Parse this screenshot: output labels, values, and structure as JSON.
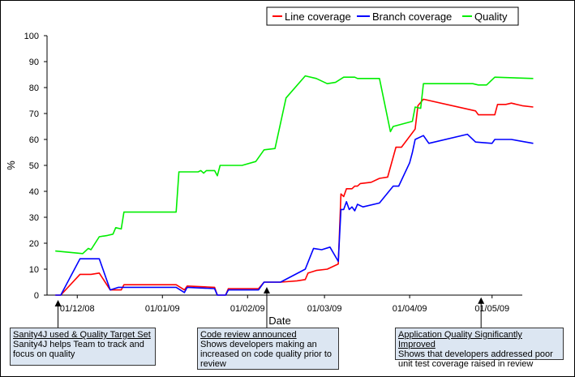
{
  "chart_data": {
    "type": "line",
    "ylabel": "%",
    "xlabel": "Date",
    "ylim": [
      0,
      100
    ],
    "yticks": [
      0,
      10,
      20,
      30,
      40,
      50,
      60,
      70,
      80,
      90,
      100
    ],
    "xrange": [
      "2008-11-20",
      "2009-05-12"
    ],
    "xticks": [
      {
        "date": "2008-12-01",
        "label": "01/12/08"
      },
      {
        "date": "2009-01-01",
        "label": "01/01/09"
      },
      {
        "date": "2009-02-01",
        "label": "01/02/09"
      },
      {
        "date": "2009-03-01",
        "label": "01/03/09"
      },
      {
        "date": "2009-04-01",
        "label": "01/04/09"
      },
      {
        "date": "2009-05-01",
        "label": "01/05/09"
      }
    ],
    "grid": false,
    "legend_position": "top-right",
    "series": [
      {
        "name": "Line coverage",
        "color": "#ff0000",
        "points": [
          [
            "2008-11-23",
            0
          ],
          [
            "2008-11-25",
            0
          ],
          [
            "2008-12-02",
            8
          ],
          [
            "2008-12-06",
            8
          ],
          [
            "2008-12-09",
            8.5
          ],
          [
            "2008-12-13",
            2
          ],
          [
            "2008-12-17",
            2
          ],
          [
            "2008-12-18",
            4
          ],
          [
            "2009-01-06",
            4
          ],
          [
            "2009-01-09",
            2
          ],
          [
            "2009-01-10",
            3.5
          ],
          [
            "2009-01-20",
            3
          ],
          [
            "2009-01-21",
            0
          ],
          [
            "2009-01-24",
            0
          ],
          [
            "2009-01-25",
            2.5
          ],
          [
            "2009-02-05",
            2.5
          ],
          [
            "2009-02-07",
            5
          ],
          [
            "2009-02-13",
            5
          ],
          [
            "2009-02-19",
            5.5
          ],
          [
            "2009-02-22",
            6
          ],
          [
            "2009-02-23",
            8.5
          ],
          [
            "2009-02-26",
            9.5
          ],
          [
            "2009-03-02",
            10
          ],
          [
            "2009-03-06",
            12
          ],
          [
            "2009-03-07",
            39
          ],
          [
            "2009-03-08",
            38
          ],
          [
            "2009-03-09",
            41
          ],
          [
            "2009-03-11",
            41
          ],
          [
            "2009-03-12",
            42
          ],
          [
            "2009-03-13",
            42
          ],
          [
            "2009-03-14",
            43
          ],
          [
            "2009-03-18",
            43.5
          ],
          [
            "2009-03-21",
            45
          ],
          [
            "2009-03-24",
            45.5
          ],
          [
            "2009-03-27",
            57
          ],
          [
            "2009-03-29",
            57
          ],
          [
            "2009-04-03",
            64
          ],
          [
            "2009-04-04",
            73
          ],
          [
            "2009-04-06",
            75.5
          ],
          [
            "2009-04-25",
            71
          ],
          [
            "2009-04-26",
            69.5
          ],
          [
            "2009-05-02",
            69.5
          ],
          [
            "2009-05-03",
            73.5
          ],
          [
            "2009-05-06",
            73.5
          ],
          [
            "2009-05-08",
            74
          ],
          [
            "2009-05-12",
            73
          ],
          [
            "2009-05-16",
            72.5
          ]
        ]
      },
      {
        "name": "Branch coverage",
        "color": "#0000ff",
        "points": [
          [
            "2008-11-23",
            0
          ],
          [
            "2008-11-25",
            0
          ],
          [
            "2008-12-02",
            14
          ],
          [
            "2008-12-09",
            14
          ],
          [
            "2008-12-13",
            2
          ],
          [
            "2008-12-16",
            3
          ],
          [
            "2008-12-18",
            3
          ],
          [
            "2009-01-06",
            3
          ],
          [
            "2009-01-09",
            1
          ],
          [
            "2009-01-10",
            3
          ],
          [
            "2009-01-20",
            2.5
          ],
          [
            "2009-01-21",
            0
          ],
          [
            "2009-01-24",
            0
          ],
          [
            "2009-01-25",
            2
          ],
          [
            "2009-02-05",
            2
          ],
          [
            "2009-02-07",
            5
          ],
          [
            "2009-02-13",
            5
          ],
          [
            "2009-02-22",
            10
          ],
          [
            "2009-02-25",
            18
          ],
          [
            "2009-02-28",
            17.5
          ],
          [
            "2009-03-03",
            18.5
          ],
          [
            "2009-03-06",
            13
          ],
          [
            "2009-03-07",
            33
          ],
          [
            "2009-03-08",
            33
          ],
          [
            "2009-03-09",
            36
          ],
          [
            "2009-03-10",
            33
          ],
          [
            "2009-03-11",
            34
          ],
          [
            "2009-03-12",
            32.5
          ],
          [
            "2009-03-13",
            35
          ],
          [
            "2009-03-15",
            34
          ],
          [
            "2009-03-21",
            35.5
          ],
          [
            "2009-03-26",
            42
          ],
          [
            "2009-03-28",
            42
          ],
          [
            "2009-04-01",
            51
          ],
          [
            "2009-04-02",
            55
          ],
          [
            "2009-04-03",
            60
          ],
          [
            "2009-04-06",
            61.5
          ],
          [
            "2009-04-08",
            58.5
          ],
          [
            "2009-04-22",
            62
          ],
          [
            "2009-04-25",
            59
          ],
          [
            "2009-05-01",
            58.5
          ],
          [
            "2009-05-02",
            60
          ],
          [
            "2009-05-08",
            60
          ],
          [
            "2009-05-16",
            58.5
          ]
        ]
      },
      {
        "name": "Quality",
        "color": "#00ee00",
        "points": [
          [
            "2008-11-23",
            17
          ],
          [
            "2008-12-03",
            16
          ],
          [
            "2008-12-05",
            18
          ],
          [
            "2008-12-06",
            17.5
          ],
          [
            "2008-12-09",
            22.5
          ],
          [
            "2008-12-12",
            23
          ],
          [
            "2008-12-14",
            23.5
          ],
          [
            "2008-12-15",
            26
          ],
          [
            "2008-12-17",
            25.5
          ],
          [
            "2008-12-18",
            32
          ],
          [
            "2009-01-06",
            32
          ],
          [
            "2009-01-07",
            47.5
          ],
          [
            "2009-01-14",
            47.5
          ],
          [
            "2009-01-15",
            48
          ],
          [
            "2009-01-16",
            47
          ],
          [
            "2009-01-17",
            48
          ],
          [
            "2009-01-20",
            48
          ],
          [
            "2009-01-21",
            46
          ],
          [
            "2009-01-22",
            50
          ],
          [
            "2009-01-29",
            50
          ],
          [
            "2009-01-30",
            50
          ],
          [
            "2009-02-04",
            51.5
          ],
          [
            "2009-02-07",
            56
          ],
          [
            "2009-02-11",
            56.5
          ],
          [
            "2009-02-15",
            76
          ],
          [
            "2009-02-22",
            84.5
          ],
          [
            "2009-02-26",
            83.5
          ],
          [
            "2009-03-02",
            81.5
          ],
          [
            "2009-03-05",
            82
          ],
          [
            "2009-03-08",
            84
          ],
          [
            "2009-03-12",
            84
          ],
          [
            "2009-03-13",
            83.5
          ],
          [
            "2009-03-21",
            83.5
          ],
          [
            "2009-03-25",
            63
          ],
          [
            "2009-03-26",
            65
          ],
          [
            "2009-04-02",
            67
          ],
          [
            "2009-04-03",
            72.5
          ],
          [
            "2009-04-05",
            72
          ],
          [
            "2009-04-06",
            81.5
          ],
          [
            "2009-04-24",
            81.5
          ],
          [
            "2009-04-26",
            81
          ],
          [
            "2009-04-29",
            81
          ],
          [
            "2009-05-02",
            84
          ],
          [
            "2009-05-16",
            83.5
          ]
        ]
      }
    ],
    "annotations": [
      {
        "title": "Sanity4J used & Quality Target Set",
        "body": "Sanity4J helps Team to track and focus on quality",
        "date": "2008-11-24",
        "value": 0
      },
      {
        "title": "Code review announced",
        "body": "Shows developers making an increased on code quality prior to review",
        "date": "2009-02-08",
        "value": 5
      },
      {
        "title": "Application Quality Significantly Improved",
        "body": "Shows that developers addressed poor unit test coverage raised in review",
        "date": "2009-04-27",
        "value": 1
      }
    ]
  }
}
